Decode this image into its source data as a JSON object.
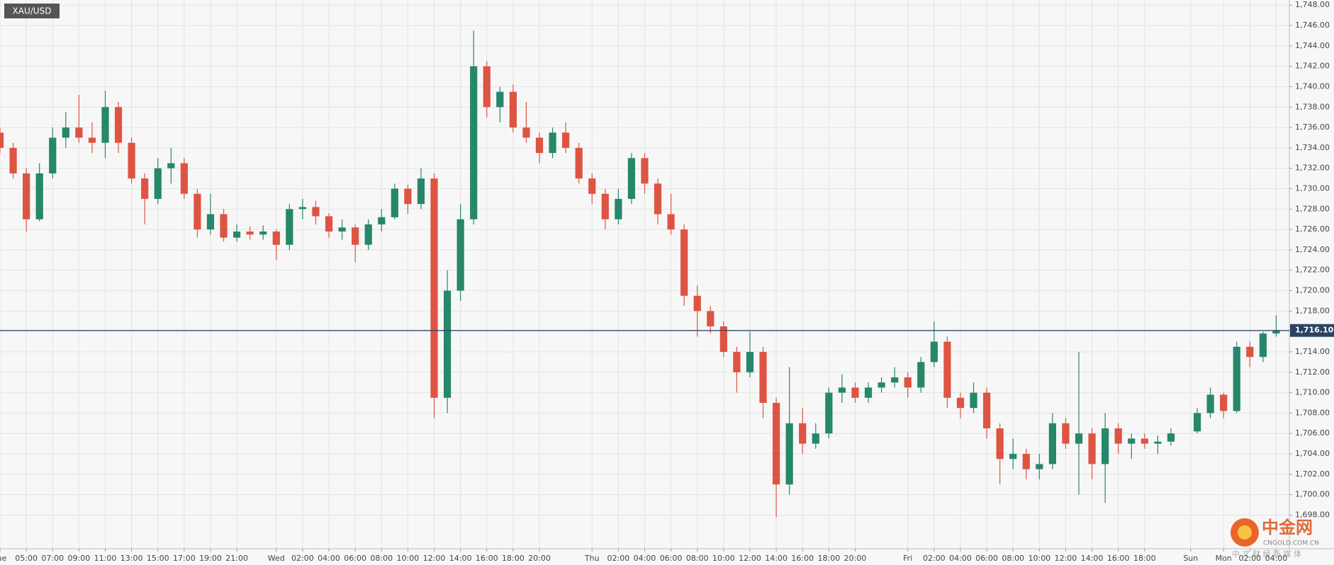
{
  "chart_data": {
    "type": "candlestick",
    "title": "XAU/USD",
    "x": [
      0,
      1,
      2,
      3,
      4,
      5,
      6,
      7,
      8,
      9,
      10,
      11,
      12,
      13,
      14,
      15,
      16,
      17,
      18,
      19,
      20,
      21,
      22,
      23,
      24,
      25,
      26,
      27,
      28,
      29,
      30,
      31,
      32,
      33,
      34,
      35,
      36,
      37,
      38,
      39,
      40,
      41,
      42,
      43,
      44,
      45,
      46,
      47,
      48,
      49,
      50,
      51,
      52,
      53,
      54,
      55,
      56,
      57,
      58,
      59,
      60,
      61,
      62,
      63,
      64,
      65,
      66,
      67,
      68,
      69,
      70,
      71,
      72,
      73,
      74,
      75,
      76,
      77,
      78,
      79,
      80,
      81,
      82,
      83,
      84,
      85,
      86,
      87,
      88,
      89,
      91,
      92,
      93,
      94,
      95,
      96,
      97
    ],
    "open": [
      1735.5,
      1734,
      1731.5,
      1727,
      1731.5,
      1735,
      1736,
      1735,
      1734.5,
      1738,
      1734.5,
      1731,
      1729,
      1732,
      1732.5,
      1729.5,
      1726,
      1727.5,
      1725.2,
      1725.8,
      1725.5,
      1725.8,
      1724.5,
      1728,
      1728.2,
      1727.3,
      1725.8,
      1726.2,
      1724.5,
      1726.5,
      1727.2,
      1730,
      1728.5,
      1731,
      1709.5,
      1720,
      1727,
      1742,
      1738,
      1739.5,
      1736,
      1735,
      1733.5,
      1735.5,
      1734,
      1731,
      1729.5,
      1727,
      1729,
      1733,
      1730.5,
      1727.5,
      1726,
      1719.5,
      1718,
      1716.5,
      1714,
      1712,
      1714,
      1709,
      1701,
      1707,
      1705,
      1706,
      1710,
      1710.5,
      1709.5,
      1710.5,
      1711,
      1711.5,
      1710.5,
      1713,
      1715,
      1709.5,
      1708.5,
      1710,
      1706.5,
      1703.5,
      1704,
      1702.5,
      1703,
      1707,
      1705,
      1706,
      1703,
      1706.5,
      1705,
      1705.5,
      1705,
      1705.2,
      1706.2,
      1708,
      1709.8,
      1708.2,
      1714.5,
      1713.5,
      1715.8
    ],
    "high": [
      1736,
      1734.5,
      1732,
      1732.5,
      1736,
      1737.5,
      1739.2,
      1736.5,
      1739.6,
      1738.5,
      1735,
      1731.5,
      1733,
      1734,
      1733,
      1730,
      1729.5,
      1728,
      1726.5,
      1726.3,
      1726.4,
      1726,
      1728.5,
      1729,
      1728.8,
      1727.6,
      1727,
      1726.5,
      1727,
      1728,
      1730.5,
      1730.4,
      1732,
      1731.5,
      1722,
      1728.5,
      1745.5,
      1742.5,
      1740,
      1740.2,
      1738.5,
      1735.5,
      1736,
      1736.5,
      1734.5,
      1731.5,
      1730,
      1730,
      1733.5,
      1733.5,
      1731,
      1729.5,
      1726.5,
      1720.5,
      1718.5,
      1717,
      1714.5,
      1716,
      1714.5,
      1709.5,
      1712.5,
      1708.5,
      1707,
      1710.5,
      1711.8,
      1711,
      1711,
      1711.5,
      1712.5,
      1712,
      1713.5,
      1717,
      1715.5,
      1710,
      1711,
      1710.5,
      1707,
      1705.5,
      1704.5,
      1704,
      1708,
      1707.5,
      1714,
      1706.5,
      1708,
      1707,
      1706,
      1706,
      1705.8,
      1706.5,
      1708.5,
      1710.5,
      1710,
      1715,
      1715,
      1716,
      1717.6
    ],
    "low": [
      1733.5,
      1731,
      1725.8,
      1726.8,
      1731,
      1734,
      1734.5,
      1733.5,
      1733,
      1733.5,
      1730.5,
      1726.5,
      1728.5,
      1730.5,
      1729,
      1725.2,
      1725.5,
      1724.8,
      1724.8,
      1725,
      1725,
      1723,
      1724,
      1727,
      1726.5,
      1725.2,
      1725,
      1722.8,
      1724,
      1725.8,
      1727,
      1727.5,
      1728,
      1707.5,
      1708,
      1719,
      1726.5,
      1737,
      1736.5,
      1735.5,
      1734.5,
      1732.5,
      1733,
      1733.5,
      1730.5,
      1728.5,
      1726,
      1726.5,
      1728.5,
      1729.5,
      1726.5,
      1725.5,
      1718.5,
      1715.5,
      1715.8,
      1713.5,
      1710,
      1711.5,
      1707.5,
      1697.8,
      1700,
      1704,
      1704.5,
      1705.5,
      1709,
      1709,
      1709,
      1710,
      1710.5,
      1709.5,
      1710,
      1712.5,
      1708.5,
      1707.5,
      1708,
      1705.5,
      1701,
      1702.5,
      1701.5,
      1701.5,
      1702.5,
      1704.5,
      1700,
      1701.5,
      1699.2,
      1704,
      1703.5,
      1704.5,
      1704,
      1704.8,
      1706,
      1707.5,
      1707.5,
      1708,
      1712.5,
      1713,
      1715.5
    ],
    "close": [
      1734,
      1731.5,
      1727,
      1731.5,
      1735,
      1736,
      1735,
      1734.5,
      1738,
      1734.5,
      1731,
      1729,
      1732,
      1732.5,
      1729.5,
      1726,
      1727.5,
      1725.2,
      1725.8,
      1725.5,
      1725.8,
      1724.5,
      1728,
      1728.2,
      1727.3,
      1725.8,
      1726.2,
      1724.5,
      1726.5,
      1727.2,
      1730,
      1728.5,
      1731,
      1709.5,
      1720,
      1727,
      1742,
      1738,
      1739.5,
      1736,
      1735,
      1733.5,
      1735.5,
      1734,
      1731,
      1729.5,
      1727,
      1729,
      1733,
      1730.5,
      1727.5,
      1726,
      1719.5,
      1718,
      1716.5,
      1714,
      1712,
      1714,
      1709,
      1701,
      1707,
      1705,
      1706,
      1710,
      1710.5,
      1709.5,
      1710.5,
      1711,
      1711.5,
      1710.5,
      1713,
      1715,
      1709.5,
      1708.5,
      1710,
      1706.5,
      1703.5,
      1704,
      1702.5,
      1703,
      1707,
      1705,
      1706,
      1703,
      1706.5,
      1705,
      1705.5,
      1705,
      1705.2,
      1706,
      1708,
      1709.8,
      1708.2,
      1714.5,
      1713.5,
      1715.8,
      1716.1
    ],
    "up_color": "#26876a",
    "down_color": "#dd5443",
    "last_price": {
      "value": 1716.1,
      "label": "1,716.10"
    },
    "last_price_color": "#2d4262",
    "xlim": [
      0,
      98
    ],
    "ylim": [
      1694.7,
      1748.5
    ],
    "xticks": [
      {
        "value": 0,
        "label": "Tue"
      },
      {
        "value": 2,
        "label": "05:00"
      },
      {
        "value": 4,
        "label": "07:00"
      },
      {
        "value": 6,
        "label": "09:00"
      },
      {
        "value": 8,
        "label": "11:00"
      },
      {
        "value": 10,
        "label": "13:00"
      },
      {
        "value": 12,
        "label": "15:00"
      },
      {
        "value": 14,
        "label": "17:00"
      },
      {
        "value": 16,
        "label": "19:00"
      },
      {
        "value": 18,
        "label": "21:00"
      },
      {
        "value": 21,
        "label": "Wed"
      },
      {
        "value": 23,
        "label": "02:00"
      },
      {
        "value": 25,
        "label": "04:00"
      },
      {
        "value": 27,
        "label": "06:00"
      },
      {
        "value": 29,
        "label": "08:00"
      },
      {
        "value": 31,
        "label": "10:00"
      },
      {
        "value": 33,
        "label": "12:00"
      },
      {
        "value": 35,
        "label": "14:00"
      },
      {
        "value": 37,
        "label": "16:00"
      },
      {
        "value": 39,
        "label": "18:00"
      },
      {
        "value": 41,
        "label": "20:00"
      },
      {
        "value": 45,
        "label": "Thu"
      },
      {
        "value": 47,
        "label": "02:00"
      },
      {
        "value": 49,
        "label": "04:00"
      },
      {
        "value": 51,
        "label": "06:00"
      },
      {
        "value": 53,
        "label": "08:00"
      },
      {
        "value": 55,
        "label": "10:00"
      },
      {
        "value": 57,
        "label": "12:00"
      },
      {
        "value": 59,
        "label": "14:00"
      },
      {
        "value": 61,
        "label": "16:00"
      },
      {
        "value": 63,
        "label": "18:00"
      },
      {
        "value": 65,
        "label": "20:00"
      },
      {
        "value": 69,
        "label": "Fri"
      },
      {
        "value": 71,
        "label": "02:00"
      },
      {
        "value": 73,
        "label": "04:00"
      },
      {
        "value": 75,
        "label": "06:00"
      },
      {
        "value": 77,
        "label": "08:00"
      },
      {
        "value": 79,
        "label": "10:00"
      },
      {
        "value": 81,
        "label": "12:00"
      },
      {
        "value": 83,
        "label": "14:00"
      },
      {
        "value": 85,
        "label": "16:00"
      },
      {
        "value": 87,
        "label": "18:00"
      },
      {
        "value": 90.5,
        "label": "Sun"
      },
      {
        "value": 93,
        "label": "Mon"
      },
      {
        "value": 95,
        "label": "02:00"
      },
      {
        "value": 97,
        "label": "04:00"
      }
    ],
    "yticks": [
      {
        "value": 1698,
        "label": "1,698.00"
      },
      {
        "value": 1700,
        "label": "1,700.00"
      },
      {
        "value": 1702,
        "label": "1,702.00"
      },
      {
        "value": 1704,
        "label": "1,704.00"
      },
      {
        "value": 1706,
        "label": "1,706.00"
      },
      {
        "value": 1708,
        "label": "1,708.00"
      },
      {
        "value": 1710,
        "label": "1,710.00"
      },
      {
        "value": 1712,
        "label": "1,712.00"
      },
      {
        "value": 1714,
        "label": "1,714.00"
      },
      {
        "value": 1716,
        "label": "1,716.00"
      },
      {
        "value": 1718,
        "label": "1,718.00"
      },
      {
        "value": 1720,
        "label": "1,720.00"
      },
      {
        "value": 1722,
        "label": "1,722.00"
      },
      {
        "value": 1724,
        "label": "1,724.00"
      },
      {
        "value": 1726,
        "label": "1,726.00"
      },
      {
        "value": 1728,
        "label": "1,728.00"
      },
      {
        "value": 1730,
        "label": "1,730.00"
      },
      {
        "value": 1732,
        "label": "1,732.00"
      },
      {
        "value": 1734,
        "label": "1,734.00"
      },
      {
        "value": 1736,
        "label": "1,736.00"
      },
      {
        "value": 1738,
        "label": "1,738.00"
      },
      {
        "value": 1740,
        "label": "1,740.00"
      },
      {
        "value": 1742,
        "label": "1,742.00"
      },
      {
        "value": 1744,
        "label": "1,744.00"
      },
      {
        "value": 1746,
        "label": "1,746.00"
      },
      {
        "value": 1748,
        "label": "1,748.00"
      }
    ],
    "grid": true,
    "watermark": {
      "name": "中金网",
      "site": "CNGOLD.COM.CN",
      "slogan": "中 文 财 经 新 媒 体"
    }
  }
}
